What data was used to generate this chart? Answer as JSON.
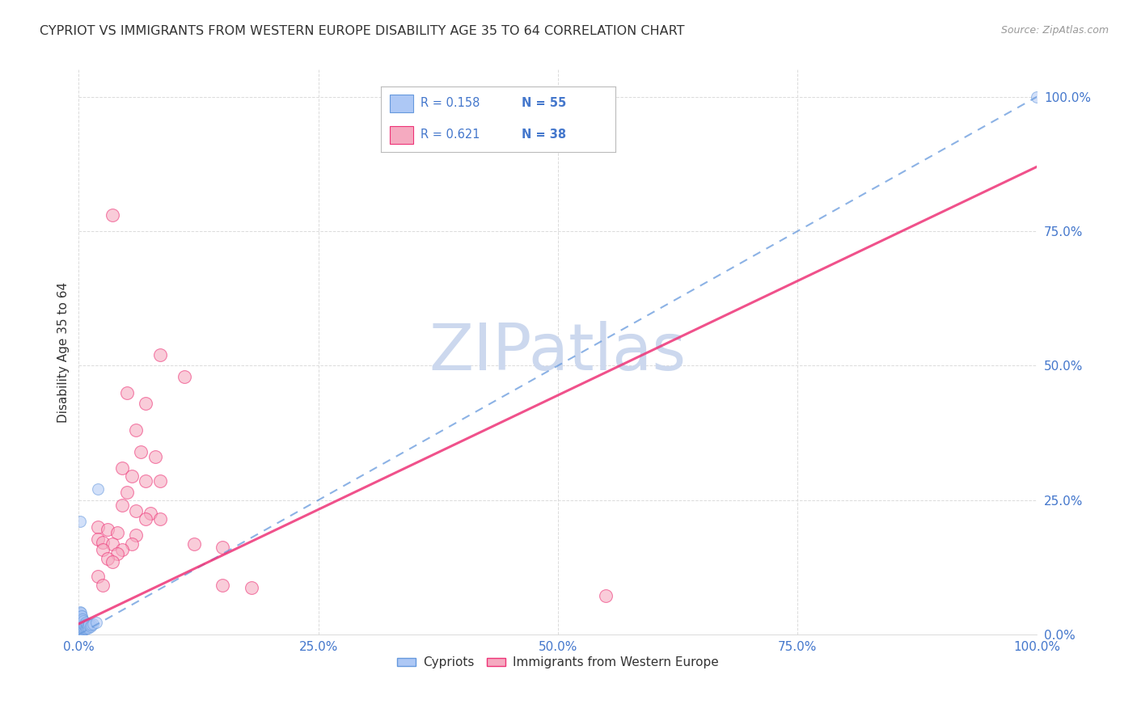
{
  "title": "CYPRIOT VS IMMIGRANTS FROM WESTERN EUROPE DISABILITY AGE 35 TO 64 CORRELATION CHART",
  "source": "Source: ZipAtlas.com",
  "ylabel": "Disability Age 35 to 64",
  "watermark": "ZIPatlas",
  "legend_label1": "Cypriots",
  "legend_label2": "Immigrants from Western Europe",
  "R1": 0.158,
  "N1": 55,
  "R2": 0.621,
  "N2": 38,
  "blue_scatter": [
    [
      0.001,
      0.005
    ],
    [
      0.001,
      0.008
    ],
    [
      0.001,
      0.012
    ],
    [
      0.001,
      0.015
    ],
    [
      0.001,
      0.018
    ],
    [
      0.001,
      0.022
    ],
    [
      0.001,
      0.025
    ],
    [
      0.001,
      0.028
    ],
    [
      0.001,
      0.03
    ],
    [
      0.001,
      0.033
    ],
    [
      0.001,
      0.038
    ],
    [
      0.001,
      0.042
    ],
    [
      0.002,
      0.005
    ],
    [
      0.002,
      0.01
    ],
    [
      0.002,
      0.015
    ],
    [
      0.002,
      0.018
    ],
    [
      0.002,
      0.022
    ],
    [
      0.002,
      0.025
    ],
    [
      0.002,
      0.03
    ],
    [
      0.002,
      0.035
    ],
    [
      0.002,
      0.04
    ],
    [
      0.003,
      0.005
    ],
    [
      0.003,
      0.01
    ],
    [
      0.003,
      0.015
    ],
    [
      0.003,
      0.02
    ],
    [
      0.003,
      0.025
    ],
    [
      0.003,
      0.03
    ],
    [
      0.003,
      0.035
    ],
    [
      0.004,
      0.008
    ],
    [
      0.004,
      0.012
    ],
    [
      0.004,
      0.018
    ],
    [
      0.004,
      0.022
    ],
    [
      0.004,
      0.028
    ],
    [
      0.005,
      0.01
    ],
    [
      0.005,
      0.015
    ],
    [
      0.005,
      0.02
    ],
    [
      0.005,
      0.025
    ],
    [
      0.006,
      0.012
    ],
    [
      0.006,
      0.018
    ],
    [
      0.007,
      0.01
    ],
    [
      0.007,
      0.015
    ],
    [
      0.007,
      0.022
    ],
    [
      0.008,
      0.012
    ],
    [
      0.008,
      0.02
    ],
    [
      0.009,
      0.015
    ],
    [
      0.01,
      0.012
    ],
    [
      0.01,
      0.018
    ],
    [
      0.011,
      0.02
    ],
    [
      0.012,
      0.015
    ],
    [
      0.013,
      0.018
    ],
    [
      0.015,
      0.02
    ],
    [
      0.018,
      0.022
    ],
    [
      0.02,
      0.27
    ],
    [
      0.001,
      0.21
    ],
    [
      1.0,
      1.0
    ]
  ],
  "pink_scatter": [
    [
      0.035,
      0.78
    ],
    [
      0.085,
      0.52
    ],
    [
      0.11,
      0.48
    ],
    [
      0.05,
      0.45
    ],
    [
      0.07,
      0.43
    ],
    [
      0.06,
      0.38
    ],
    [
      0.065,
      0.34
    ],
    [
      0.08,
      0.33
    ],
    [
      0.045,
      0.31
    ],
    [
      0.055,
      0.295
    ],
    [
      0.07,
      0.285
    ],
    [
      0.085,
      0.285
    ],
    [
      0.05,
      0.265
    ],
    [
      0.045,
      0.24
    ],
    [
      0.06,
      0.23
    ],
    [
      0.075,
      0.225
    ],
    [
      0.07,
      0.215
    ],
    [
      0.085,
      0.215
    ],
    [
      0.02,
      0.2
    ],
    [
      0.03,
      0.195
    ],
    [
      0.04,
      0.19
    ],
    [
      0.06,
      0.185
    ],
    [
      0.02,
      0.178
    ],
    [
      0.025,
      0.172
    ],
    [
      0.035,
      0.168
    ],
    [
      0.055,
      0.168
    ],
    [
      0.025,
      0.158
    ],
    [
      0.045,
      0.158
    ],
    [
      0.04,
      0.15
    ],
    [
      0.03,
      0.142
    ],
    [
      0.035,
      0.135
    ],
    [
      0.12,
      0.168
    ],
    [
      0.15,
      0.162
    ],
    [
      0.02,
      0.108
    ],
    [
      0.025,
      0.092
    ],
    [
      0.15,
      0.092
    ],
    [
      0.18,
      0.088
    ],
    [
      0.55,
      0.072
    ]
  ],
  "blue_color": "#adc8f5",
  "pink_color": "#f5aac0",
  "blue_line_color": "#6699dd",
  "pink_line_color": "#ee3377",
  "background_color": "#ffffff",
  "grid_color": "#d8d8d8",
  "title_color": "#333333",
  "axis_tick_color": "#4477cc",
  "watermark_color": "#ccd8ee",
  "blue_trendline": [
    0.0,
    0.0,
    1.0,
    1.0
  ],
  "pink_trendline": [
    0.0,
    0.02,
    1.0,
    0.87
  ],
  "xlim": [
    0.0,
    1.0
  ],
  "ylim": [
    0.0,
    1.05
  ],
  "xticks": [
    0.0,
    0.25,
    0.5,
    0.75,
    1.0
  ],
  "yticks": [
    0.0,
    0.25,
    0.5,
    0.75,
    1.0
  ],
  "xticklabels": [
    "0.0%",
    "25.0%",
    "50.0%",
    "75.0%",
    "100.0%"
  ],
  "yticklabels": [
    "0.0%",
    "25.0%",
    "50.0%",
    "75.0%",
    "100.0%"
  ]
}
